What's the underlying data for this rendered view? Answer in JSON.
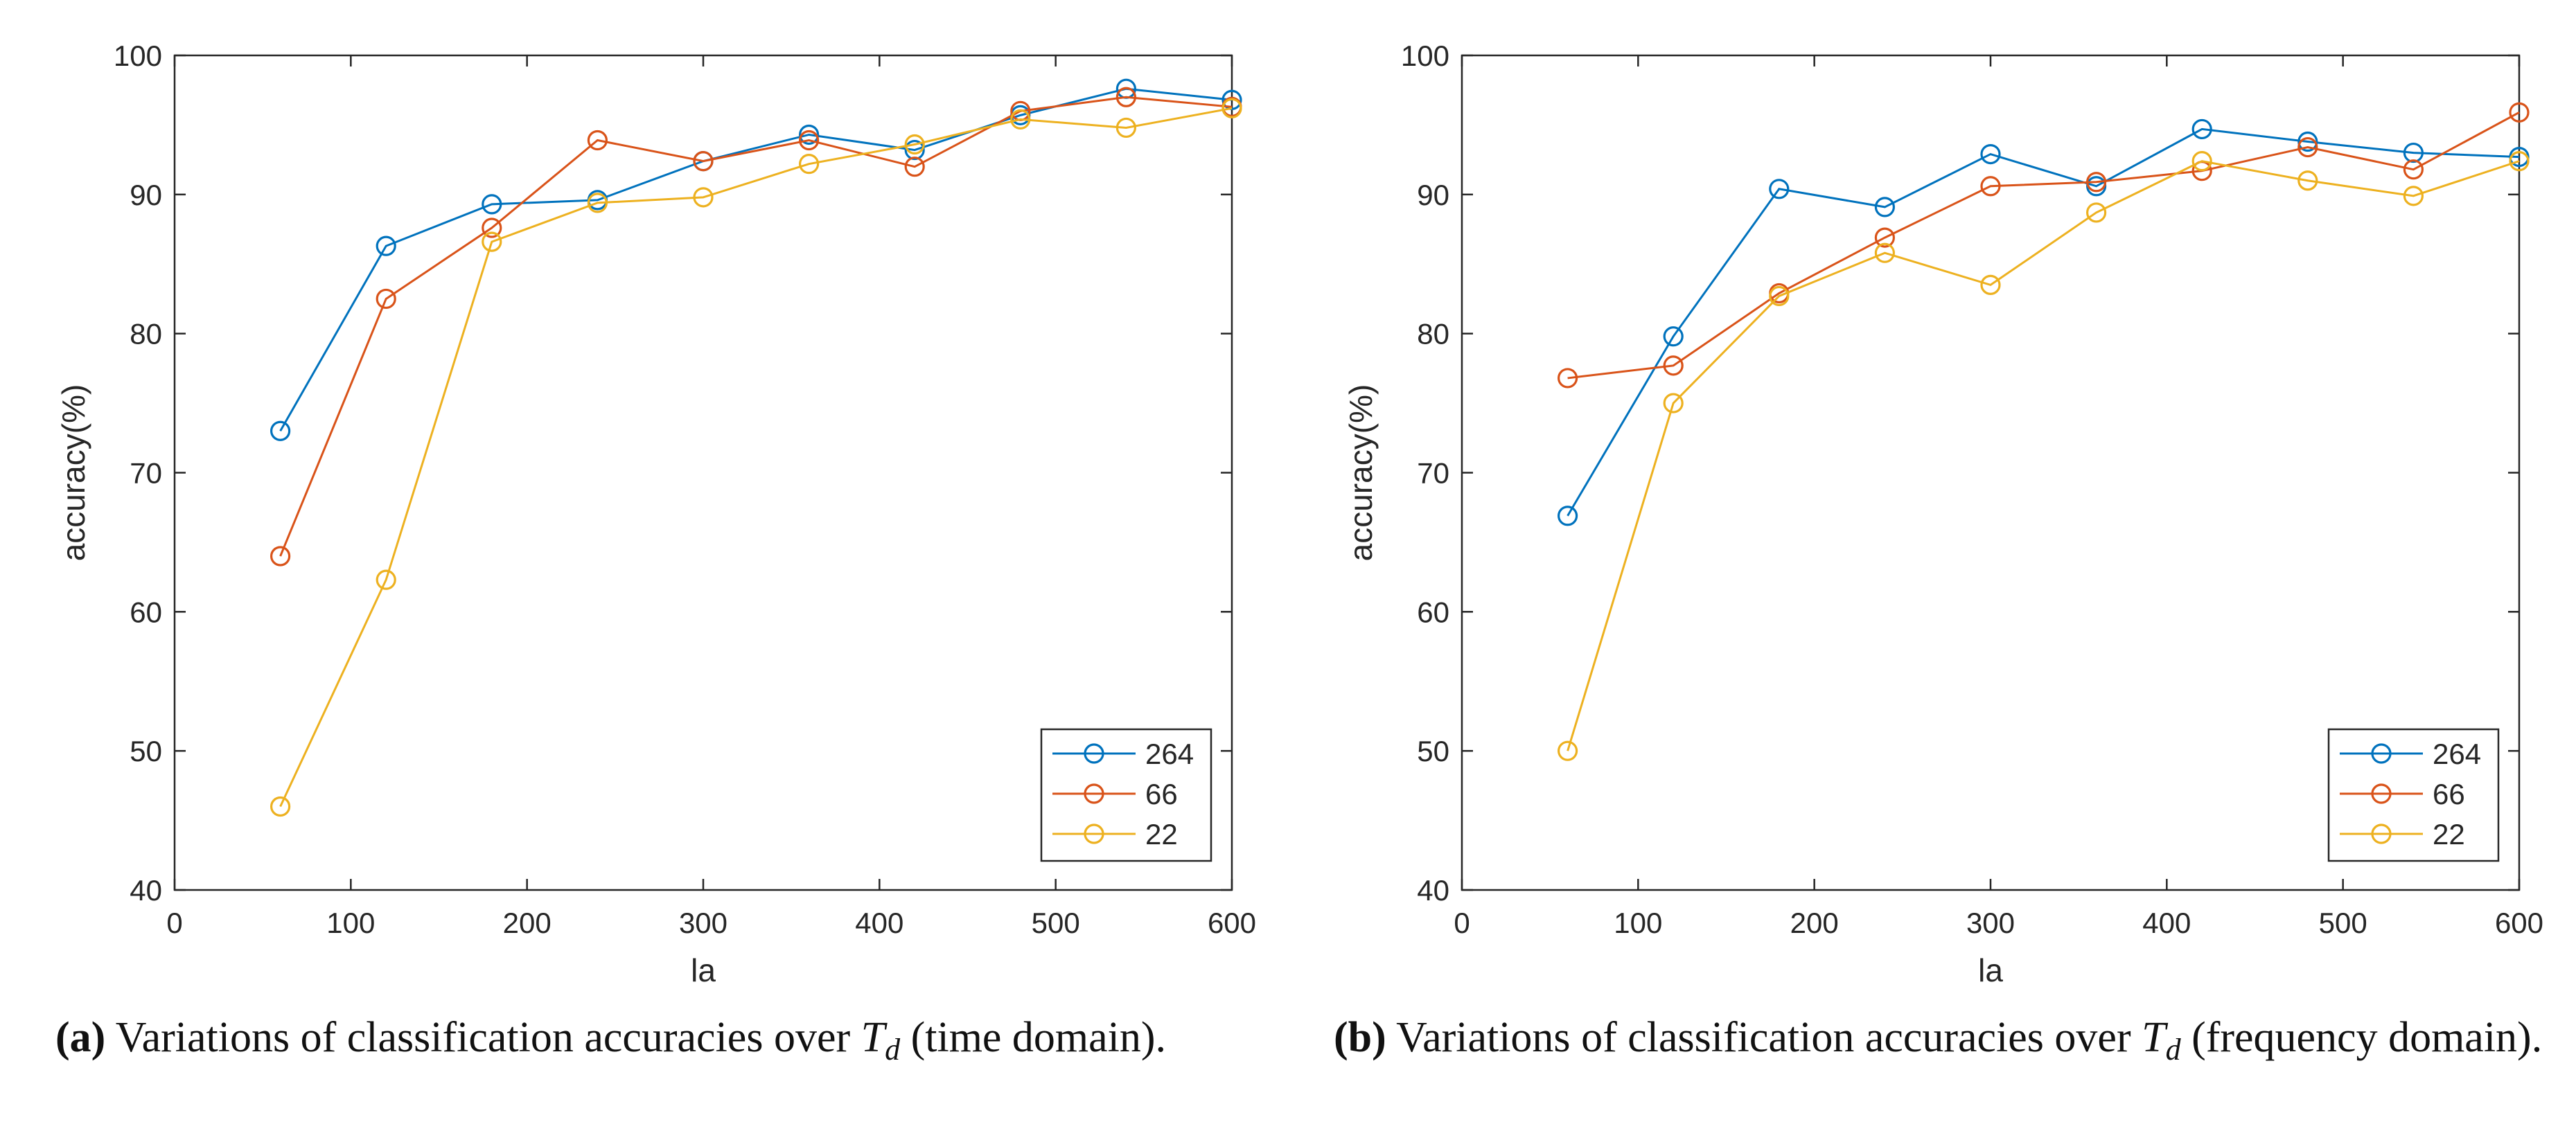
{
  "colors": {
    "series": [
      "#0072BD",
      "#D95319",
      "#EDB120"
    ],
    "axis": "#262626"
  },
  "chart_data": [
    {
      "type": "line",
      "panel_label": "a",
      "xlabel": "la",
      "ylabel": "accuracy(%)",
      "xlim": [
        0,
        600
      ],
      "ylim": [
        40,
        100
      ],
      "xticks": [
        0,
        100,
        200,
        300,
        400,
        500,
        600
      ],
      "yticks": [
        40,
        50,
        60,
        70,
        80,
        90,
        100
      ],
      "grid": false,
      "marker": "circle",
      "legend_position": "bottom-right",
      "x": [
        60,
        120,
        180,
        240,
        300,
        360,
        420,
        480,
        540,
        600
      ],
      "series": [
        {
          "name": "264",
          "values": [
            73.0,
            86.3,
            89.3,
            89.6,
            92.4,
            94.3,
            93.2,
            95.7,
            97.6,
            96.8
          ]
        },
        {
          "name": "66",
          "values": [
            64.0,
            82.5,
            87.6,
            93.9,
            92.4,
            93.9,
            92.0,
            96.0,
            97.0,
            96.3
          ]
        },
        {
          "name": "22",
          "values": [
            46.0,
            62.3,
            86.6,
            89.4,
            89.8,
            92.2,
            93.6,
            95.4,
            94.8,
            96.2
          ]
        }
      ]
    },
    {
      "type": "line",
      "panel_label": "b",
      "xlabel": "la",
      "ylabel": "accuracy(%)",
      "xlim": [
        0,
        600
      ],
      "ylim": [
        40,
        100
      ],
      "xticks": [
        0,
        100,
        200,
        300,
        400,
        500,
        600
      ],
      "yticks": [
        40,
        50,
        60,
        70,
        80,
        90,
        100
      ],
      "grid": false,
      "marker": "circle",
      "legend_position": "bottom-right",
      "x": [
        60,
        120,
        180,
        240,
        300,
        360,
        420,
        480,
        540,
        600
      ],
      "series": [
        {
          "name": "264",
          "values": [
            66.9,
            79.8,
            90.4,
            89.1,
            92.9,
            90.6,
            94.7,
            93.8,
            93.0,
            92.7
          ]
        },
        {
          "name": "66",
          "values": [
            76.8,
            77.7,
            82.9,
            86.9,
            90.6,
            90.9,
            91.7,
            93.4,
            91.8,
            95.9
          ]
        },
        {
          "name": "22",
          "values": [
            50.0,
            75.0,
            82.7,
            85.8,
            83.5,
            88.7,
            92.4,
            91.0,
            89.9,
            92.4
          ]
        }
      ]
    }
  ],
  "captions": [
    {
      "tag": "(a)",
      "text_before": "Variations of classification accuracies over",
      "math_main": "T",
      "math_sub": "d",
      "text_after": "(time domain)."
    },
    {
      "tag": "(b)",
      "text_before": "Variations of classification accuracies over",
      "math_main": "T",
      "math_sub": "d",
      "text_after": "(frequency domain)."
    }
  ]
}
